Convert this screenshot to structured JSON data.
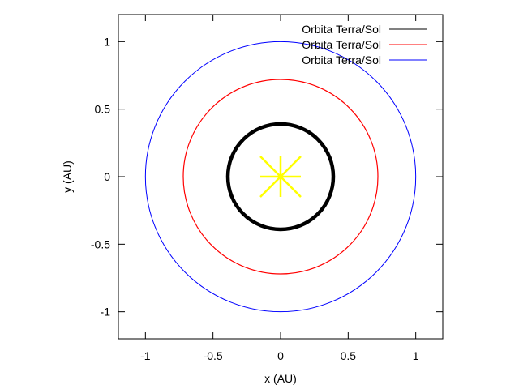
{
  "chart_data": {
    "type": "line",
    "title": "",
    "xlabel": "x (AU)",
    "ylabel": "y (AU)",
    "xlim": [
      -1.2,
      1.2
    ],
    "ylim": [
      -1.2,
      1.2
    ],
    "xticks": [
      -1,
      -0.5,
      0,
      0.5,
      1
    ],
    "yticks": [
      -1,
      -0.5,
      0,
      0.5,
      1
    ],
    "xtick_labels": [
      "-1",
      "-0.5",
      "0",
      "0.5",
      "1"
    ],
    "ytick_labels": [
      "-1",
      "-0.5",
      "0",
      "0.5",
      "1"
    ],
    "grid": false,
    "legend_position": "top-right",
    "series": [
      {
        "name": "Orbita Terra/Sol",
        "color": "#000000",
        "shape": "circle",
        "center": [
          0,
          0
        ],
        "radius": 0.39
      },
      {
        "name": "Orbita Terra/Sol",
        "color": "#ff0000",
        "shape": "circle",
        "center": [
          0,
          0
        ],
        "radius": 0.72
      },
      {
        "name": "Orbita Terra/Sol",
        "color": "#0000ff",
        "shape": "circle",
        "center": [
          0,
          0
        ],
        "radius": 1.0
      }
    ],
    "sun": {
      "color": "#ffff00",
      "icon": "sun-star-icon",
      "center": [
        0,
        0
      ]
    }
  }
}
